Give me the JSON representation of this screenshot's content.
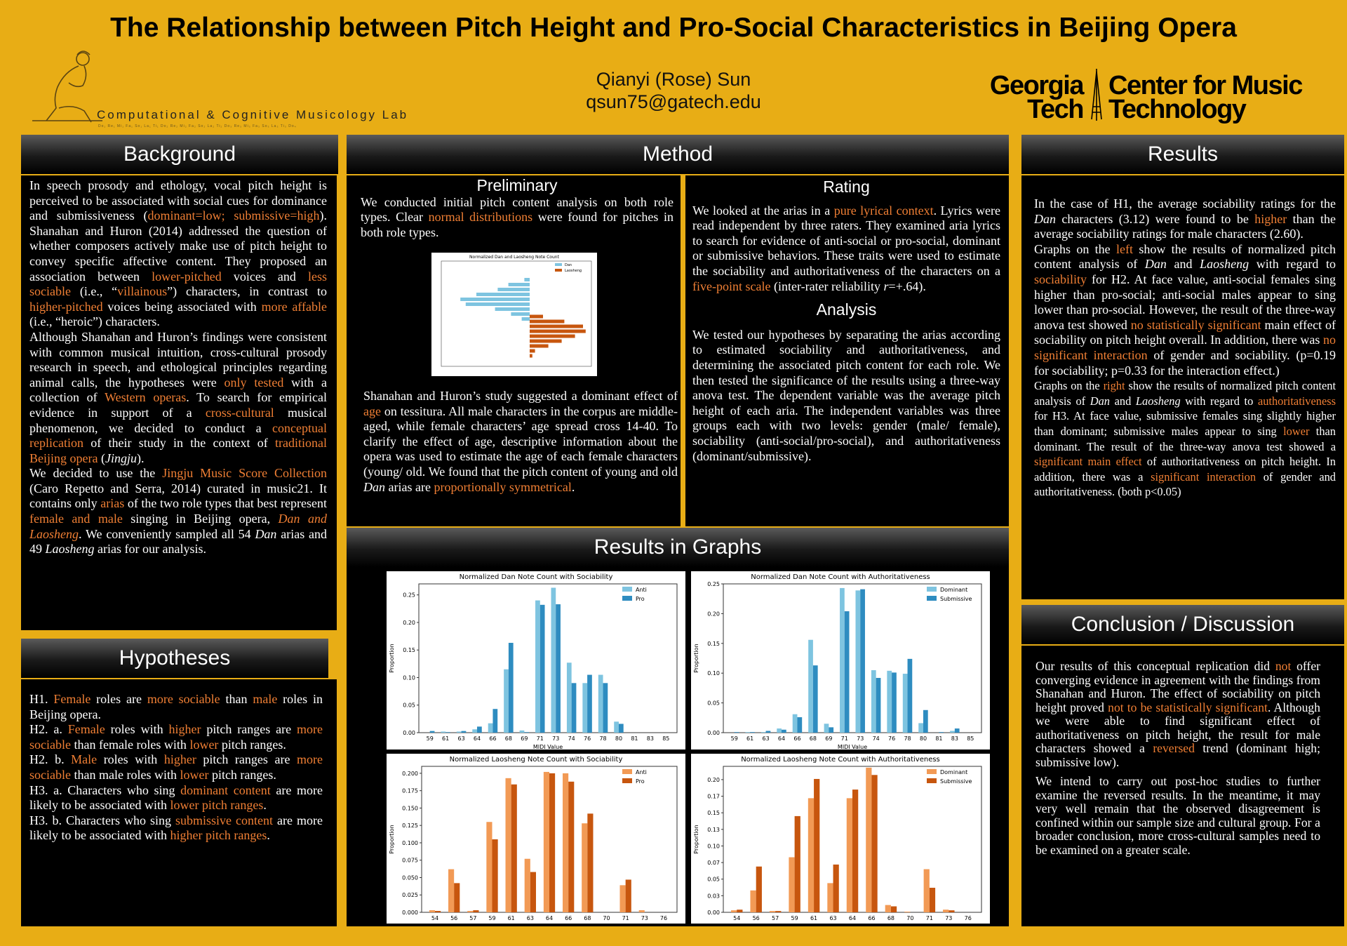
{
  "header": {
    "title": "The Relationship between Pitch Height and Pro-Social Characteristics in Beijing Opera",
    "author_name": "Qianyi (Rose) Sun",
    "author_email": "qsun75@gatech.edu",
    "lab_name": "Computational & Cognitive Musicology Lab",
    "logo_left_line1": "Georgia",
    "logo_left_line2": "Tech",
    "logo_right_line1": "Center for Music",
    "logo_right_line2": "Technology"
  },
  "sections": {
    "background": "Background",
    "method": "Method",
    "results": "Results",
    "hypotheses": "Hypotheses",
    "results_graphs": "Results in Graphs",
    "conclusion": "Conclusion / Discussion",
    "preliminary": "Preliminary",
    "rating": "Rating",
    "analysis": "Analysis"
  },
  "colors": {
    "background": "#e8ad15",
    "accent": "#f07f34",
    "blue_light": "#7ec4e0",
    "blue_dark": "#2e8cc0",
    "orange_light": "#f29a55",
    "orange_dark": "#c7560e"
  },
  "charts": {
    "prelim": {
      "title": "Normalized Dan and Laosheng Note Count",
      "legend": [
        "Dan",
        "Laosheng"
      ]
    },
    "dan_soc": {
      "title": "Normalized Dan Note Count with Sociability",
      "legend": [
        "Anti",
        "Pro"
      ],
      "xlabel": "MIDI Value",
      "ylabel": "Proportion"
    },
    "dan_auth": {
      "title": "Normalized Dan Note Count with Authoritativeness",
      "legend": [
        "Dominant",
        "Submissive"
      ],
      "xlabel": "MIDI Value",
      "ylabel": "Proportion"
    },
    "lao_soc": {
      "title": "Normalized Laosheng Note Count with Sociability",
      "legend": [
        "Anti",
        "Pro"
      ],
      "ylabel": "Proportion"
    },
    "lao_auth": {
      "title": "Normalized Laosheng Note Count with Authoritativeness",
      "legend": [
        "Dominant",
        "Submissive"
      ],
      "ylabel": "Proportion"
    }
  },
  "chart_data": [
    {
      "type": "bar",
      "title": "Normalized Dan and Laosheng Note Count",
      "orientation": "horizontal",
      "series": [
        {
          "name": "Dan",
          "values": [
            0.02,
            0.08,
            0.12,
            0.2,
            0.26,
            0.24,
            0.13,
            0.07,
            0.03
          ]
        },
        {
          "name": "Laosheng",
          "values": [
            0.05,
            0.13,
            0.2,
            0.21,
            0.17,
            0.12,
            0.07,
            0.02,
            0.01
          ]
        }
      ]
    },
    {
      "type": "bar",
      "title": "Normalized Dan Note Count with Sociability",
      "xlabel": "MIDI Value",
      "ylabel": "Proportion",
      "ylim": [
        0,
        0.27
      ],
      "categories": [
        "59",
        "61",
        "63",
        "64",
        "66",
        "68",
        "69",
        "71",
        "73",
        "74",
        "76",
        "78",
        "80",
        "81",
        "83",
        "85"
      ],
      "series": [
        {
          "name": "Anti",
          "values": [
            0.0,
            0.002,
            0.002,
            0.006,
            0.017,
            0.115,
            0.004,
            0.24,
            0.263,
            0.127,
            0.09,
            0.105,
            0.02,
            0.0,
            0.0,
            0.0
          ]
        },
        {
          "name": "Pro",
          "values": [
            0.003,
            0.001,
            0.003,
            0.011,
            0.043,
            0.163,
            0.001,
            0.232,
            0.233,
            0.09,
            0.105,
            0.09,
            0.016,
            0.0,
            0.0,
            0.0
          ]
        }
      ]
    },
    {
      "type": "bar",
      "title": "Normalized Dan Note Count with Authoritativeness",
      "xlabel": "MIDI Value",
      "ylabel": "Proportion",
      "ylim": [
        0,
        0.25
      ],
      "categories": [
        "59",
        "61",
        "63",
        "64",
        "66",
        "68",
        "69",
        "71",
        "73",
        "74",
        "76",
        "78",
        "80",
        "81",
        "83",
        "85"
      ],
      "series": [
        {
          "name": "Dominant",
          "values": [
            0.0,
            0.001,
            0.001,
            0.007,
            0.031,
            0.156,
            0.015,
            0.243,
            0.239,
            0.105,
            0.104,
            0.099,
            0.016,
            0.0,
            0.003,
            0.0
          ]
        },
        {
          "name": "Submissive",
          "values": [
            0.001,
            0.001,
            0.003,
            0.005,
            0.026,
            0.113,
            0.009,
            0.204,
            0.241,
            0.092,
            0.101,
            0.124,
            0.038,
            0.001,
            0.007,
            0.0
          ]
        }
      ]
    },
    {
      "type": "bar",
      "title": "Normalized Laosheng Note Count with Sociability",
      "ylabel": "Proportion",
      "ylim": [
        0,
        0.21
      ],
      "categories": [
        "54",
        "56",
        "57",
        "59",
        "61",
        "63",
        "64",
        "66",
        "68",
        "70",
        "71",
        "73",
        "76"
      ],
      "series": [
        {
          "name": "Anti",
          "values": [
            0.003,
            0.062,
            0.002,
            0.13,
            0.193,
            0.077,
            0.202,
            0.2,
            0.128,
            0.0,
            0.039,
            0.003,
            0.0
          ]
        },
        {
          "name": "Pro",
          "values": [
            0.002,
            0.042,
            0.003,
            0.105,
            0.184,
            0.058,
            0.2,
            0.188,
            0.142,
            0.0,
            0.047,
            0.0,
            0.0
          ]
        }
      ]
    },
    {
      "type": "bar",
      "title": "Normalized Laosheng Note Count with Authoritativeness",
      "ylabel": "Proportion",
      "ylim": [
        0,
        0.22
      ],
      "categories": [
        "54",
        "56",
        "57",
        "59",
        "61",
        "63",
        "64",
        "66",
        "68",
        "70",
        "71",
        "73",
        "76"
      ],
      "series": [
        {
          "name": "Dominant",
          "values": [
            0.003,
            0.033,
            0.002,
            0.083,
            0.172,
            0.044,
            0.172,
            0.218,
            0.011,
            0.001,
            0.065,
            0.004,
            0.0
          ]
        },
        {
          "name": "Submissive",
          "values": [
            0.004,
            0.069,
            0.002,
            0.145,
            0.201,
            0.072,
            0.185,
            0.207,
            0.009,
            0.0,
            0.037,
            0.003,
            0.0
          ]
        }
      ]
    }
  ]
}
